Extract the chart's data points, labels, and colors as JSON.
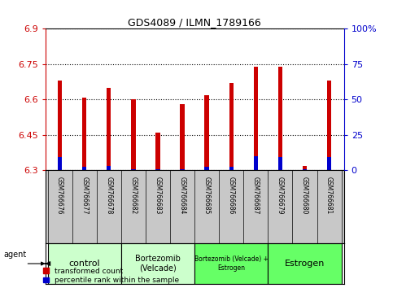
{
  "title": "GDS4089 / ILMN_1789166",
  "samples": [
    "GSM766676",
    "GSM766677",
    "GSM766678",
    "GSM766682",
    "GSM766683",
    "GSM766684",
    "GSM766685",
    "GSM766686",
    "GSM766687",
    "GSM766679",
    "GSM766680",
    "GSM766681"
  ],
  "red_values": [
    6.68,
    6.61,
    6.65,
    6.6,
    6.46,
    6.58,
    6.62,
    6.67,
    6.74,
    6.74,
    6.32,
    6.68
  ],
  "blue_values": [
    6.355,
    6.315,
    6.32,
    6.305,
    6.305,
    6.305,
    6.315,
    6.315,
    6.36,
    6.355,
    6.305,
    6.355
  ],
  "ymin": 6.3,
  "ymax": 6.9,
  "yticks": [
    6.3,
    6.45,
    6.6,
    6.75,
    6.9
  ],
  "ytick_labels": [
    "6.3",
    "6.45",
    "6.6",
    "6.75",
    "6.9"
  ],
  "y2ticks": [
    0,
    25,
    50,
    75,
    100
  ],
  "y2tick_labels": [
    "0",
    "25",
    "50",
    "75",
    "100%"
  ],
  "red_color": "#cc0000",
  "blue_color": "#0000cc",
  "bar_width": 0.18,
  "groups": [
    {
      "label": "control",
      "start": 0,
      "end": 2,
      "color": "#ccffcc"
    },
    {
      "label": "Bortezomib\n(Velcade)",
      "start": 3,
      "end": 5,
      "color": "#ccffcc"
    },
    {
      "label": "Bortezomib (Velcade) +\nEstrogen",
      "start": 6,
      "end": 8,
      "color": "#66ff66"
    },
    {
      "label": "Estrogen",
      "start": 9,
      "end": 11,
      "color": "#66ff66"
    }
  ],
  "agent_label": "agent",
  "legend_red": "transformed count",
  "legend_blue": "percentile rank within the sample",
  "grid_color": "black",
  "background_color": "#ffffff",
  "tick_color_left": "#cc0000",
  "tick_color_right": "#0000cc",
  "sample_bg": "#c8c8c8",
  "group_light": "#ccffcc",
  "group_dark": "#66ff66"
}
